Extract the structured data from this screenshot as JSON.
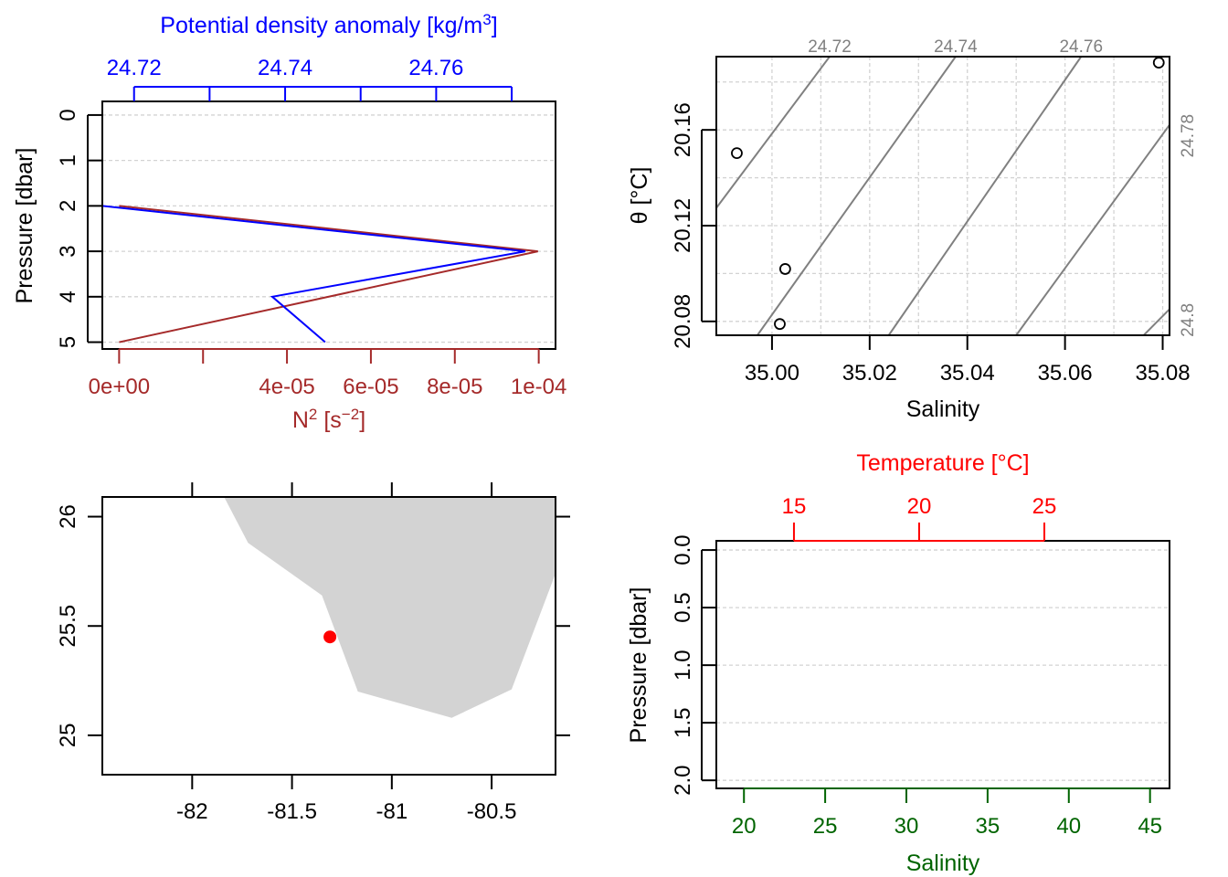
{
  "colors": {
    "density": "#0000ff",
    "n2": "#a52a2a",
    "temperature": "#ff0000",
    "salinity": "#006400",
    "isopycnal": "#808080",
    "land": "#d3d3d3",
    "station": "#ff0000",
    "grid": "#d3d3d3"
  },
  "chart_data": [
    {
      "id": "profile",
      "type": "line",
      "top_axis": {
        "label": "Potential density anomaly [kg/m3]",
        "ticks": [
          24.72,
          24.73,
          24.74,
          24.75,
          24.76,
          24.77
        ],
        "tick_labels": [
          "24.72",
          "",
          "24.74",
          "",
          "24.76",
          ""
        ],
        "range": [
          24.7158,
          24.7758
        ]
      },
      "bottom_axis": {
        "label": "N2 [s-2]",
        "ticks": [
          0,
          2e-05,
          4e-05,
          6e-05,
          8e-05,
          0.0001
        ],
        "tick_labels": [
          "0e+00",
          "",
          "4e-05",
          "6e-05",
          "8e-05",
          "1e-04"
        ],
        "range": [
          -4e-06,
          0.000104
        ]
      },
      "y_axis": {
        "label": "Pressure [dbar]",
        "ticks": [
          0,
          1,
          2,
          3,
          4,
          5
        ],
        "tick_labels": [
          "0",
          "1",
          "2",
          "3",
          "4",
          "5"
        ],
        "range": [
          5.15,
          -0.3
        ],
        "grid": true
      },
      "series": [
        {
          "axis": "bottom",
          "color_key": "n2",
          "x": [
            0,
            9.98e-05,
            0
          ],
          "y": [
            2,
            3,
            5
          ]
        },
        {
          "axis": "top",
          "color_key": "density",
          "x": [
            24.7158,
            24.7718,
            24.7383,
            24.7453
          ],
          "y": [
            2,
            3,
            4,
            5
          ]
        }
      ]
    },
    {
      "id": "ts",
      "type": "scatter",
      "xlabel": "Salinity",
      "ylabel": "θ [°C]",
      "x_ticks": [
        35.0,
        35.02,
        35.04,
        35.06,
        35.08
      ],
      "x_tick_labels": [
        "35.00",
        "35.02",
        "35.04",
        "35.06",
        "35.08"
      ],
      "y_ticks": [
        20.08,
        20.12,
        20.16
      ],
      "y_tick_labels": [
        "20.08",
        "20.12",
        "20.16"
      ],
      "x_grid": [
        35.0,
        35.01,
        35.02,
        35.03,
        35.04,
        35.05,
        35.06,
        35.07,
        35.08
      ],
      "y_grid": [
        20.08,
        20.1,
        20.12,
        20.14,
        20.16,
        20.18
      ],
      "xlim": [
        34.9886,
        35.0814
      ],
      "ylim": [
        20.0742,
        20.1906
      ],
      "points": [
        {
          "x": 34.9928,
          "y": 20.1503
        },
        {
          "x": 35.0027,
          "y": 20.1019
        },
        {
          "x": 35.0016,
          "y": 20.0789
        },
        {
          "x": 35.0792,
          "y": 20.1881
        }
      ],
      "isopycnals": [
        {
          "label": "24.72",
          "label_side": "top",
          "line": [
            [
              34.9886,
              20.1274
            ],
            [
              35.0118,
              20.1906
            ]
          ]
        },
        {
          "label": "24.74",
          "label_side": "top",
          "line": [
            [
              34.997,
              20.0742
            ],
            [
              35.0376,
              20.1906
            ]
          ]
        },
        {
          "label": "24.76",
          "label_side": "top",
          "line": [
            [
              35.0239,
              20.0742
            ],
            [
              35.0633,
              20.1906
            ]
          ]
        },
        {
          "label": "24.78",
          "label_side": "right",
          "line": [
            [
              35.05,
              20.0742
            ],
            [
              35.0814,
              20.1621
            ]
          ]
        },
        {
          "label": "24.8",
          "label_side": "right",
          "line": [
            [
              35.0761,
              20.0742
            ],
            [
              35.0814,
              20.0851
            ]
          ]
        }
      ]
    },
    {
      "id": "map",
      "type": "scatter",
      "x_ticks": [
        -82,
        -81.5,
        -81,
        -80.5
      ],
      "x_tick_labels": [
        "-82",
        "-81.5",
        "-81",
        "-80.5"
      ],
      "y_ticks": [
        25,
        25.5,
        26
      ],
      "y_tick_labels": [
        "25",
        "25.5",
        "26"
      ],
      "xlim": [
        -82.45,
        -80.18
      ],
      "ylim": [
        24.82,
        26.09
      ],
      "land": [
        [
          -81.84,
          26.09
        ],
        [
          -81.72,
          25.88
        ],
        [
          -81.35,
          25.64
        ],
        [
          -81.17,
          25.2
        ],
        [
          -80.7,
          25.08
        ],
        [
          -80.4,
          25.21
        ],
        [
          -80.18,
          25.74
        ],
        [
          -80.18,
          26.09
        ]
      ],
      "station": {
        "lon": -81.31,
        "lat": 25.45
      }
    },
    {
      "id": "ts_profile",
      "type": "line",
      "top_axis": {
        "label": "Temperature [°C]",
        "ticks": [
          15,
          20,
          25
        ],
        "tick_labels": [
          "15",
          "20",
          "25"
        ],
        "range": [
          11.9,
          30.0
        ]
      },
      "bottom_axis": {
        "label": "Salinity",
        "ticks": [
          20,
          25,
          30,
          35,
          40,
          45
        ],
        "tick_labels": [
          "20",
          "25",
          "30",
          "35",
          "40",
          "45"
        ],
        "range": [
          18.3,
          46.2
        ]
      },
      "y_axis": {
        "label": "Pressure [dbar]",
        "ticks": [
          0,
          0.5,
          1.0,
          1.5,
          2.0
        ],
        "tick_labels": [
          "0.0",
          "0.5",
          "1.0",
          "1.5",
          "2.0"
        ],
        "range": [
          2.07,
          -0.08
        ],
        "grid": true
      }
    }
  ]
}
